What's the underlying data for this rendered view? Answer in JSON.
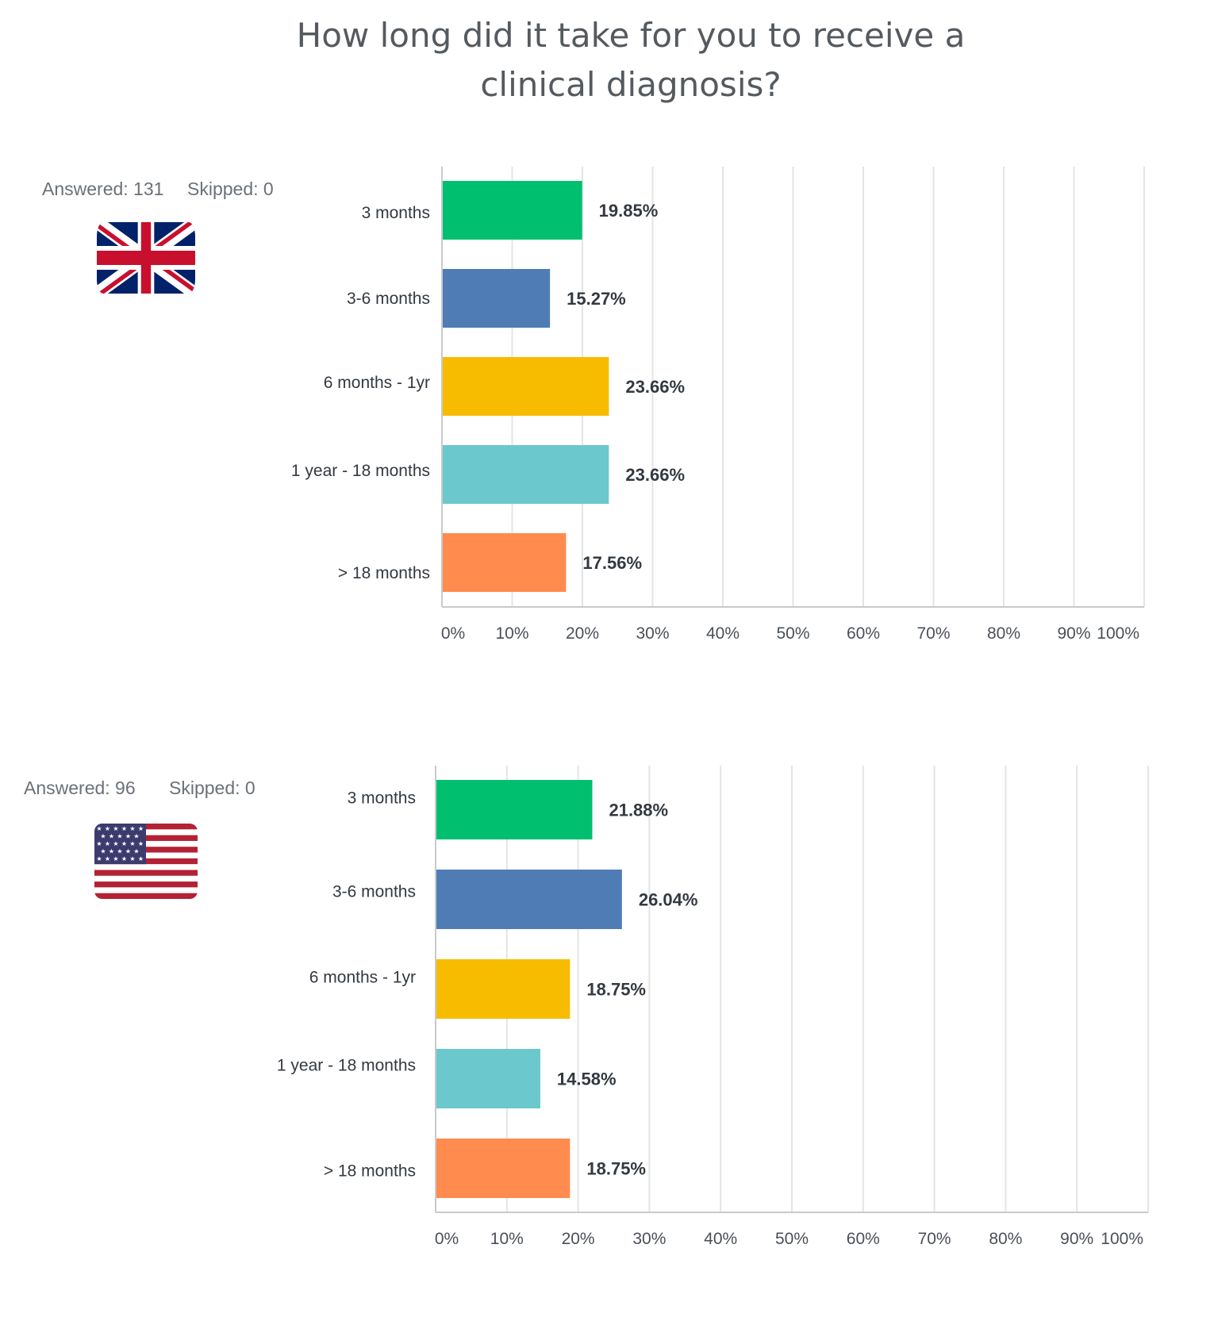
{
  "title": {
    "line1": "How long did it take for you to receive a",
    "line2": "clinical diagnosis?"
  },
  "colors": {
    "bar_palette": [
      "#00bf6f",
      "#507cb6",
      "#f7bc00",
      "#6bc8cd",
      "#ff8b4f"
    ],
    "grid": "#e2e4e6",
    "axis": "#c8cacc"
  },
  "panels": [
    {
      "flag_icon": "uk-flag-icon",
      "answered": "Answered: 131",
      "skipped": "Skipped: 0"
    },
    {
      "flag_icon": "us-flag-icon",
      "answered": "Answered: 96",
      "skipped": "Skipped: 0"
    }
  ],
  "chart_data": [
    {
      "type": "bar",
      "orientation": "horizontal",
      "title": "How long did it take for you to receive a clinical diagnosis?",
      "categories": [
        "3 months",
        "3-6 months",
        "6 months - 1yr",
        "1 year - 18 months",
        "> 18 months"
      ],
      "values": [
        19.85,
        15.27,
        23.66,
        23.66,
        17.56
      ],
      "value_labels": [
        "19.85%",
        "15.27%",
        "23.66%",
        "23.66%",
        "17.56%"
      ],
      "xlim": [
        0,
        100
      ],
      "xticks": [
        "0%",
        "10%",
        "20%",
        "30%",
        "40%",
        "50%",
        "60%",
        "70%",
        "80%",
        "90%",
        "100%"
      ],
      "grid": true
    },
    {
      "type": "bar",
      "orientation": "horizontal",
      "title": "How long did it take for you to receive a clinical diagnosis?",
      "categories": [
        "3 months",
        "3-6 months",
        "6 months - 1yr",
        "1 year - 18 months",
        "> 18 months"
      ],
      "values": [
        21.88,
        26.04,
        18.75,
        14.58,
        18.75
      ],
      "value_labels": [
        "21.88%",
        "26.04%",
        "18.75%",
        "14.58%",
        "18.75%"
      ],
      "xlim": [
        0,
        100
      ],
      "xticks": [
        "0%",
        "10%",
        "20%",
        "30%",
        "40%",
        "50%",
        "60%",
        "70%",
        "80%",
        "90%",
        "100%"
      ],
      "grid": true
    }
  ]
}
